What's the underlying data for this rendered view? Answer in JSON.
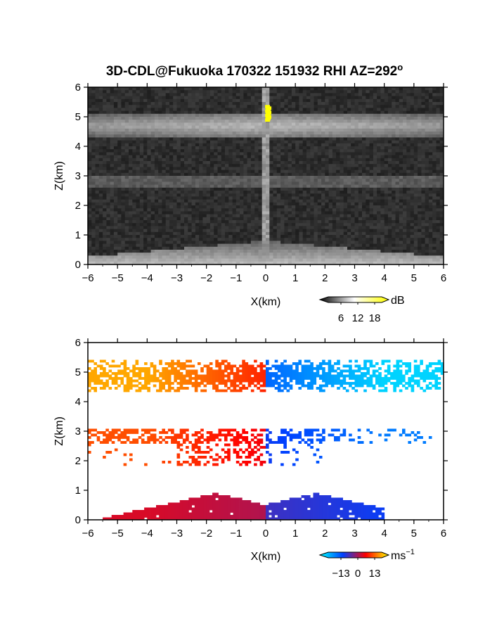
{
  "chart_data": [
    {
      "type": "heatmap",
      "title": "3D-CDL@Fukuoka 170322 151932 RHI AZ=292",
      "title_superscript": "o",
      "xlabel": "X(km)",
      "ylabel": "Z(km)",
      "xlim": [
        -6,
        6
      ],
      "ylim": [
        0,
        6
      ],
      "xticks": [
        -6,
        -5,
        -4,
        -3,
        -2,
        -1,
        0,
        1,
        2,
        3,
        4,
        5,
        6
      ],
      "yticks": [
        0,
        1,
        2,
        3,
        4,
        5,
        6
      ],
      "colorbar": {
        "unit": "dB",
        "ticks": [
          6,
          12,
          18
        ],
        "colormap": "grayscale",
        "colors": [
          "#000000",
          "#ffffff",
          "#ffff00"
        ]
      },
      "layers": [
        {
          "z_range": [
            4.3,
            5.1
          ],
          "description_value": "bright band dB ~14"
        },
        {
          "z_range": [
            2.6,
            3.0
          ],
          "description_value": "moderate band dB ~9"
        },
        {
          "z_range": [
            0.0,
            0.8
          ],
          "description_value": "near-surface band dB ~12"
        }
      ]
    },
    {
      "type": "heatmap",
      "xlabel": "X(km)",
      "ylabel": "Z(km)",
      "xlim": [
        -6,
        6
      ],
      "ylim": [
        0,
        6
      ],
      "xticks": [
        -6,
        -5,
        -4,
        -3,
        -2,
        -1,
        0,
        1,
        2,
        3,
        4,
        5,
        6
      ],
      "yticks": [
        0,
        1,
        2,
        3,
        4,
        5,
        6
      ],
      "colorbar": {
        "unit": "ms",
        "unit_superscript": "−1",
        "ticks": [
          "−13",
          "0",
          "13"
        ],
        "colormap": "diverging",
        "colors": [
          "#00ffff",
          "#0040ff",
          "#ff0000",
          "#ffff00"
        ]
      },
      "layers": [
        {
          "z_range": [
            4.3,
            5.4
          ],
          "x_range": [
            -6,
            6
          ],
          "velocity_left": 10,
          "velocity_right": -11
        },
        {
          "z_range": [
            1.8,
            3.1
          ],
          "x_range": [
            -6,
            5.6
          ],
          "velocity_left": 7,
          "velocity_right": -7
        },
        {
          "z_range": [
            0.0,
            0.9
          ],
          "x_range": [
            -5.6,
            4.0
          ],
          "velocity_left": 3,
          "velocity_right": -4
        }
      ]
    }
  ]
}
